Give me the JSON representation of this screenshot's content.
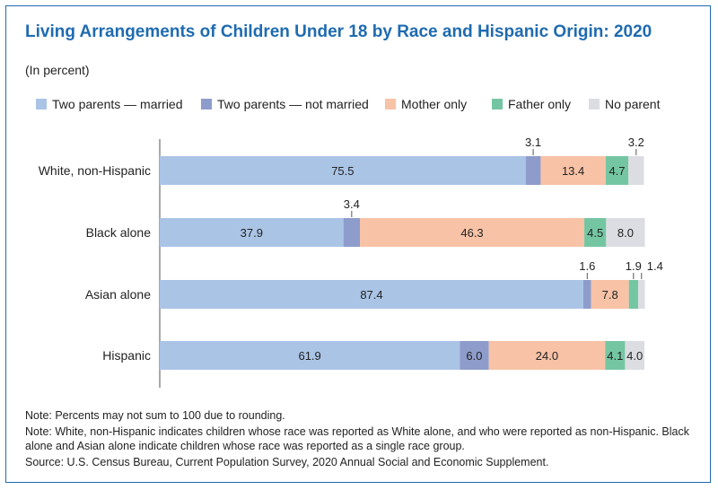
{
  "title": "Living Arrangements of Children Under 18 by Race and Hispanic Origin: 2020",
  "subtitle": "(In percent)",
  "colors": {
    "frame": "#1f6bb0",
    "title": "#1f6bb0",
    "series": [
      "#aac4e6",
      "#8e9ccb",
      "#f8c2a6",
      "#74c6a2",
      "#dcdde2"
    ]
  },
  "chart_data": {
    "type": "bar",
    "orientation": "horizontal",
    "stacked": true,
    "categories": [
      "White, non-Hispanic",
      "Black alone",
      "Asian alone",
      "Hispanic"
    ],
    "series": [
      {
        "name": "Two parents — married",
        "values": [
          75.5,
          37.9,
          87.4,
          61.9
        ]
      },
      {
        "name": "Two parents — not married",
        "values": [
          3.1,
          3.4,
          1.6,
          6.0
        ]
      },
      {
        "name": "Mother only",
        "values": [
          13.4,
          46.3,
          7.8,
          24.0
        ]
      },
      {
        "name": "Father only",
        "values": [
          4.7,
          4.5,
          1.9,
          4.1
        ]
      },
      {
        "name": "No parent",
        "values": [
          3.2,
          8.0,
          1.4,
          4.0
        ]
      }
    ],
    "data_labels": [
      [
        "75.5",
        "3.1",
        "13.4",
        "4.7",
        "3.2"
      ],
      [
        "37.9",
        "3.4",
        "46.3",
        "4.5",
        "8.0"
      ],
      [
        "87.4",
        "1.6",
        "7.8",
        "1.9",
        "1.4"
      ],
      [
        "61.9",
        "6.0",
        "24.0",
        "4.1",
        "4.0"
      ]
    ],
    "xlim": [
      0,
      100
    ],
    "grid": false,
    "legend_position": "top"
  },
  "notes": [
    "Note: Percents may not sum to 100 due to rounding.",
    "Note: White, non-Hispanic indicates children whose race was reported as White alone, and who were reported as non-Hispanic. Black alone and Asian alone indicate children whose race was reported as a single race group.",
    "Source: U.S. Census Bureau, Current Population Survey, 2020 Annual Social and Economic Supplement."
  ]
}
